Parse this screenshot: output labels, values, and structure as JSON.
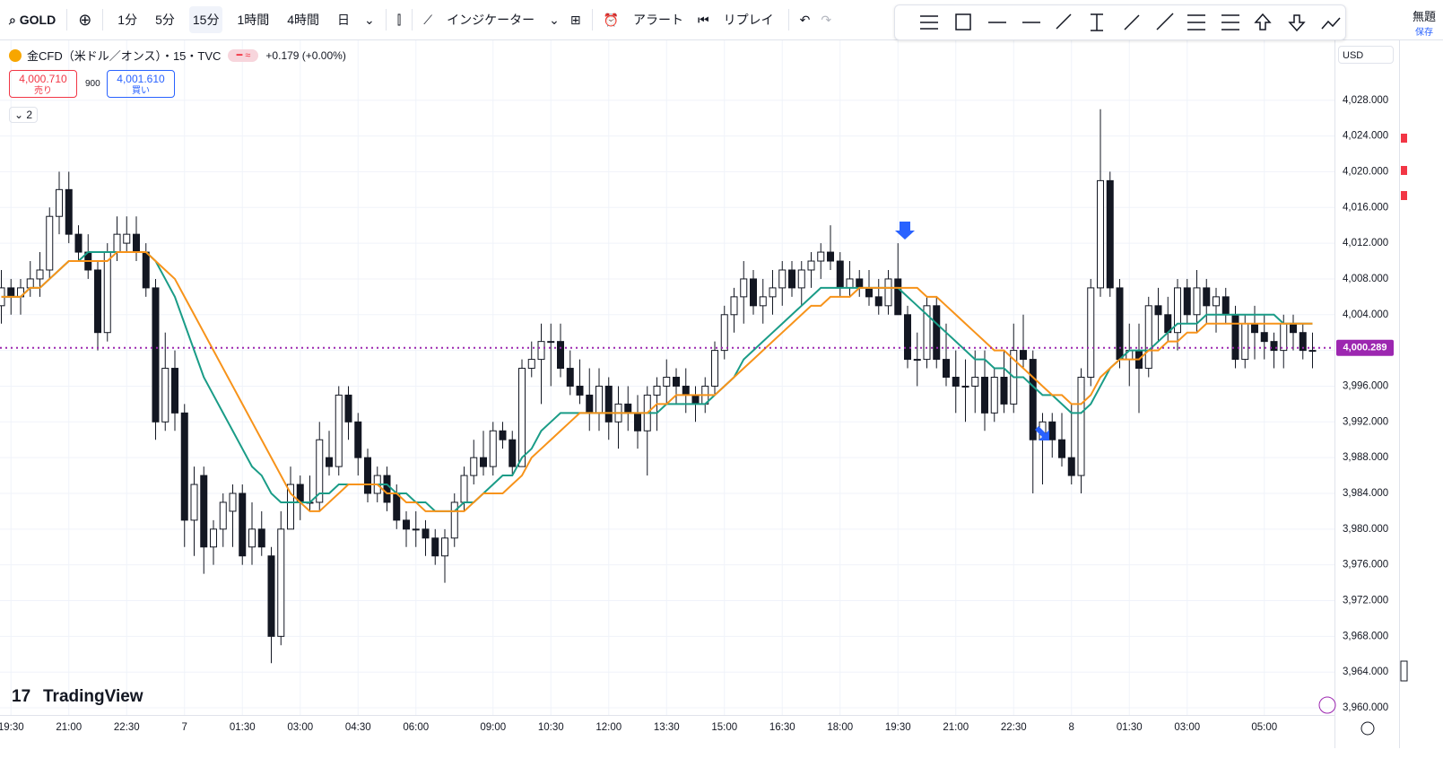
{
  "ui": {
    "symbol": "GOLD",
    "intervals": [
      "1分",
      "5分",
      "15分",
      "1時間",
      "4時間",
      "日"
    ],
    "indicators_button": "インジケーター",
    "alert_button": "アラート",
    "replay_button": "リプレイ",
    "layout_name": "無題",
    "save_label": "保存",
    "instrument": "金CFD（米ドル／オンス）・15・TVC",
    "change": "+0.179 (+0.00%)",
    "sell_price": "4,000.710",
    "sell_label": "売り",
    "spread": "900",
    "buy_price": "4,001.610",
    "buy_label": "買い",
    "indicator_count": "2",
    "currency": "USD",
    "brand": "TradingView"
  },
  "chart_data": {
    "type": "candlestick",
    "categories": [
      null,
      "19:30",
      null,
      null,
      null,
      null,
      null,
      "21:00",
      null,
      null,
      null,
      null,
      null,
      "22:30",
      null,
      null,
      null,
      null,
      null,
      "7",
      null,
      null,
      null,
      null,
      null,
      "01:30",
      null,
      null,
      null,
      null,
      null,
      "03:00",
      null,
      null,
      null,
      null,
      null,
      "04:30",
      null,
      null,
      null,
      null,
      null,
      "06:00",
      null,
      null,
      null,
      null,
      null,
      null,
      null,
      "09:00",
      null,
      null,
      null,
      null,
      null,
      "10:30",
      null,
      null,
      null,
      null,
      null,
      "12:00",
      null,
      null,
      null,
      null,
      null,
      "13:30",
      null,
      null,
      null,
      null,
      null,
      "15:00",
      null,
      null,
      null,
      null,
      null,
      "16:30",
      null,
      null,
      null,
      null,
      null,
      "18:00",
      null,
      null,
      null,
      null,
      null,
      "19:30",
      null,
      null,
      null,
      null,
      null,
      "21:00",
      null,
      null,
      null,
      null,
      null,
      "22:30",
      null,
      null,
      null,
      null,
      null,
      "8",
      null,
      null,
      null,
      null,
      null,
      "01:30",
      null,
      null,
      null,
      null,
      null,
      "03:00",
      null,
      null,
      null,
      null,
      null,
      null,
      null,
      "05:00",
      null,
      null,
      null,
      null,
      null
    ],
    "ohlc": [
      [
        4005,
        4009,
        4003,
        4007
      ],
      [
        4007,
        4008,
        4004,
        4006
      ],
      [
        4006,
        4008,
        4004,
        4007
      ],
      [
        4007,
        4010,
        4006,
        4008
      ],
      [
        4008,
        4011,
        4006,
        4009
      ],
      [
        4009,
        4016,
        4008,
        4015
      ],
      [
        4015,
        4020,
        4013,
        4018
      ],
      [
        4018,
        4020,
        4012,
        4013
      ],
      [
        4013,
        4014,
        4010,
        4011
      ],
      [
        4011,
        4013,
        4008,
        4009
      ],
      [
        4009,
        4010,
        4000,
        4002
      ],
      [
        4002,
        4012,
        4001,
        4011
      ],
      [
        4011,
        4015,
        4010,
        4013
      ],
      [
        4012,
        4015,
        4011,
        4013
      ],
      [
        4013,
        4015,
        4010,
        4011
      ],
      [
        4011,
        4012,
        4006,
        4007
      ],
      [
        4007,
        4008,
        3990,
        3992
      ],
      [
        3992,
        4002,
        3991,
        3998
      ],
      [
        3998,
        4000,
        3991,
        3993
      ],
      [
        3993,
        3994,
        3978,
        3981
      ],
      [
        3981,
        3987,
        3977,
        3985
      ],
      [
        3986,
        3987,
        3975,
        3978
      ],
      [
        3978,
        3981,
        3976,
        3980
      ],
      [
        3980,
        3984,
        3978,
        3983
      ],
      [
        3982,
        3985,
        3978,
        3984
      ],
      [
        3984,
        3985,
        3976,
        3977
      ],
      [
        3978,
        3983,
        3976,
        3980
      ],
      [
        3980,
        3982,
        3977,
        3978
      ],
      [
        3977,
        3978,
        3965,
        3968
      ],
      [
        3968,
        3982,
        3967,
        3980
      ],
      [
        3980,
        3987,
        3980,
        3985
      ],
      [
        3985,
        3986,
        3981,
        3983
      ],
      [
        3983,
        3986,
        3982,
        3983
      ],
      [
        3983,
        3992,
        3982,
        3990
      ],
      [
        3988,
        3991,
        3986,
        3987
      ],
      [
        3987,
        3996,
        3986,
        3995
      ],
      [
        3995,
        3996,
        3990,
        3992
      ],
      [
        3992,
        3993,
        3986,
        3988
      ],
      [
        3988,
        3989,
        3983,
        3984
      ],
      [
        3984,
        3987,
        3983,
        3986
      ],
      [
        3986,
        3987,
        3982,
        3983
      ],
      [
        3984,
        3985,
        3980,
        3981
      ],
      [
        3981,
        3982,
        3978,
        3980
      ],
      [
        3980,
        3982,
        3978,
        3980
      ],
      [
        3980,
        3981,
        3977,
        3979
      ],
      [
        3979,
        3980,
        3976,
        3977
      ],
      [
        3977,
        3980,
        3974,
        3979
      ],
      [
        3979,
        3984,
        3978,
        3983
      ],
      [
        3983,
        3987,
        3982,
        3986
      ],
      [
        3986,
        3990,
        3985,
        3988
      ],
      [
        3988,
        3991,
        3986,
        3987
      ],
      [
        3987,
        3992,
        3986,
        3991
      ],
      [
        3991,
        3992,
        3989,
        3990
      ],
      [
        3990,
        3991,
        3986,
        3987
      ],
      [
        3987,
        3999,
        3987,
        3998
      ],
      [
        3998,
        4001,
        3997,
        3999
      ],
      [
        3999,
        4003,
        3994,
        4001
      ],
      [
        4001,
        4003,
        3996,
        4001
      ],
      [
        4001,
        4003,
        3997,
        3998
      ],
      [
        3998,
        4000,
        3995,
        3996
      ],
      [
        3996,
        3999,
        3994,
        3995
      ],
      [
        3995,
        3998,
        3991,
        3993
      ],
      [
        3993,
        3998,
        3991,
        3996
      ],
      [
        3996,
        3997,
        3990,
        3992
      ],
      [
        3992,
        3996,
        3989,
        3994
      ],
      [
        3994,
        3996,
        3991,
        3993
      ],
      [
        3993,
        3995,
        3989,
        3991
      ],
      [
        3991,
        3996,
        3986,
        3995
      ],
      [
        3995,
        3997,
        3991,
        3996
      ],
      [
        3996,
        3999,
        3994,
        3997
      ],
      [
        3997,
        3998,
        3994,
        3996
      ],
      [
        3996,
        3998,
        3993,
        3995
      ],
      [
        3995,
        3996,
        3992,
        3994
      ],
      [
        3994,
        3997,
        3993,
        3996
      ],
      [
        3996,
        4001,
        3995,
        4000
      ],
      [
        4000,
        4005,
        3999,
        4004
      ],
      [
        4004,
        4007,
        4002,
        4006
      ],
      [
        4006,
        4010,
        4003,
        4008
      ],
      [
        4008,
        4009,
        4004,
        4005
      ],
      [
        4005,
        4008,
        4003,
        4006
      ],
      [
        4006,
        4009,
        4004,
        4007
      ],
      [
        4007,
        4010,
        4005,
        4009
      ],
      [
        4009,
        4010,
        4006,
        4007
      ],
      [
        4007,
        4010,
        4005,
        4009
      ],
      [
        4009,
        4011,
        4007,
        4010
      ],
      [
        4010,
        4012,
        4008,
        4011
      ],
      [
        4011,
        4014,
        4009,
        4010
      ],
      [
        4010,
        4011,
        4006,
        4007
      ],
      [
        4007,
        4010,
        4006,
        4008
      ],
      [
        4008,
        4009,
        4006,
        4007
      ],
      [
        4007,
        4009,
        4005,
        4006
      ],
      [
        4006,
        4008,
        4004,
        4005
      ],
      [
        4005,
        4009,
        4004,
        4008
      ],
      [
        4008,
        4012,
        4004,
        4004
      ],
      [
        4004,
        4005,
        3998,
        3999
      ],
      [
        3999,
        4002,
        3996,
        3999
      ],
      [
        3999,
        4006,
        3998,
        4005
      ],
      [
        4005,
        4006,
        3998,
        3999
      ],
      [
        3999,
        4003,
        3996,
        3997
      ],
      [
        3997,
        4000,
        3993,
        3996
      ],
      [
        3996,
        3999,
        3992,
        3996
      ],
      [
        3996,
        4000,
        3993,
        3997
      ],
      [
        3997,
        4000,
        3991,
        3993
      ],
      [
        3993,
        3998,
        3992,
        3997
      ],
      [
        3997,
        4000,
        3993,
        3994
      ],
      [
        3994,
        4003,
        3993,
        4000
      ],
      [
        4000,
        4004,
        3998,
        3999
      ],
      [
        3999,
        4000,
        3984,
        3990
      ],
      [
        3990,
        3993,
        3985,
        3992
      ],
      [
        3992,
        3993,
        3988,
        3990
      ],
      [
        3990,
        3993,
        3987,
        3988
      ],
      [
        3988,
        3994,
        3985,
        3986
      ],
      [
        3986,
        3998,
        3984,
        3997
      ],
      [
        3997,
        4008,
        3996,
        4007
      ],
      [
        4007,
        4027,
        4006,
        4019
      ],
      [
        4019,
        4020,
        4006,
        4007
      ],
      [
        4007,
        4008,
        3998,
        3999
      ],
      [
        3999,
        4003,
        3996,
        4000
      ],
      [
        4000,
        4003,
        3993,
        3998
      ],
      [
        3998,
        4006,
        3997,
        4005
      ],
      [
        4005,
        4007,
        4001,
        4004
      ],
      [
        4004,
        4006,
        4001,
        4002
      ],
      [
        4002,
        4008,
        4000,
        4007
      ],
      [
        4007,
        4008,
        4003,
        4004
      ],
      [
        4004,
        4009,
        4002,
        4007
      ],
      [
        4007,
        4008,
        4003,
        4005
      ],
      [
        4005,
        4007,
        4002,
        4006
      ],
      [
        4006,
        4007,
        4003,
        4004
      ],
      [
        4004,
        4005,
        3998,
        3999
      ],
      [
        3999,
        4004,
        3998,
        4003
      ],
      [
        4003,
        4005,
        3999,
        4002
      ],
      [
        4002,
        4004,
        3999,
        4001
      ],
      [
        4001,
        4002,
        3998,
        4000
      ],
      [
        4000,
        4004,
        3998,
        4003
      ],
      [
        4003,
        4004,
        4000,
        4002
      ],
      [
        4002,
        4003,
        3999,
        4000
      ],
      [
        4000,
        4002,
        3998,
        4000
      ]
    ],
    "lines": [
      {
        "color": "#1a9c87",
        "values": [
          4006,
          4006,
          4006,
          4007,
          4007,
          4008,
          4009,
          4010,
          4010,
          4011,
          4011,
          4011,
          4011,
          4011,
          4011,
          4011,
          4010,
          4008,
          4006,
          4003,
          4000,
          3997,
          3995,
          3993,
          3991,
          3989,
          3987,
          3986,
          3984,
          3983,
          3983,
          3983,
          3983,
          3984,
          3984,
          3985,
          3985,
          3985,
          3985,
          3985,
          3985,
          3984,
          3984,
          3983,
          3983,
          3982,
          3982,
          3982,
          3983,
          3983,
          3984,
          3985,
          3986,
          3986,
          3988,
          3989,
          3991,
          3992,
          3993,
          3993,
          3993,
          3993,
          3993,
          3993,
          3993,
          3993,
          3993,
          3993,
          3993,
          3994,
          3994,
          3994,
          3994,
          3994,
          3995,
          3996,
          3997,
          3999,
          4000,
          4001,
          4002,
          4003,
          4004,
          4005,
          4006,
          4007,
          4007,
          4007,
          4007,
          4007,
          4007,
          4007,
          4007,
          4007,
          4006,
          4005,
          4004,
          4003,
          4002,
          4001,
          4000,
          3999,
          3999,
          3998,
          3998,
          3997,
          3997,
          3996,
          3995,
          3995,
          3994,
          3993,
          3993,
          3994,
          3996,
          3998,
          3999,
          4000,
          4000,
          4000,
          4001,
          4002,
          4003,
          4003,
          4003,
          4004,
          4004,
          4004,
          4004,
          4004,
          4004,
          4004,
          4004,
          4003,
          4003,
          4003,
          4003
        ]
      },
      {
        "color": "#f7931a",
        "values": [
          4006,
          4006,
          4006,
          4007,
          4007,
          4008,
          4009,
          4010,
          4010,
          4010,
          4010,
          4010,
          4011,
          4011,
          4011,
          4011,
          4010,
          4009,
          4008,
          4006,
          4004,
          4002,
          4000,
          3998,
          3996,
          3994,
          3992,
          3990,
          3988,
          3986,
          3984,
          3983,
          3982,
          3982,
          3983,
          3984,
          3985,
          3985,
          3985,
          3985,
          3984,
          3984,
          3983,
          3983,
          3982,
          3982,
          3982,
          3982,
          3982,
          3983,
          3984,
          3984,
          3984,
          3985,
          3986,
          3988,
          3989,
          3990,
          3991,
          3992,
          3993,
          3993,
          3993,
          3993,
          3993,
          3993,
          3993,
          3993,
          3994,
          3994,
          3995,
          3995,
          3995,
          3995,
          3995,
          3996,
          3997,
          3998,
          3999,
          4000,
          4001,
          4002,
          4003,
          4004,
          4005,
          4005,
          4006,
          4006,
          4006,
          4007,
          4007,
          4007,
          4007,
          4007,
          4007,
          4007,
          4006,
          4006,
          4005,
          4004,
          4003,
          4002,
          4001,
          4000,
          4000,
          3999,
          3998,
          3997,
          3996,
          3995,
          3995,
          3994,
          3994,
          3995,
          3997,
          3998,
          3999,
          3999,
          3999,
          4000,
          4000,
          4001,
          4001,
          4002,
          4002,
          4003,
          4003,
          4003,
          4003,
          4003,
          4003,
          4003,
          4003,
          4003,
          4003,
          4003,
          4003
        ]
      }
    ],
    "price_line": {
      "value": 4000.289,
      "label": "4,000.289",
      "color": "#9c27b0"
    },
    "ylim": [
      3959.2,
      4034.7
    ],
    "yticks": [
      {
        "value": 3960,
        "label": "3,960.000"
      },
      {
        "value": 3964,
        "label": "3,964.000"
      },
      {
        "value": 3968,
        "label": "3,968.000"
      },
      {
        "value": 3972,
        "label": "3,972.000"
      },
      {
        "value": 3976,
        "label": "3,976.000"
      },
      {
        "value": 3980,
        "label": "3,980.000"
      },
      {
        "value": 3984,
        "label": "3,984.000"
      },
      {
        "value": 3988,
        "label": "3,988.000"
      },
      {
        "value": 3992,
        "label": "3,992.000"
      },
      {
        "value": 3996,
        "label": "3,996.000"
      },
      {
        "value": 4000,
        "label": "4,000.000"
      },
      {
        "value": 4004,
        "label": "4,004.000"
      },
      {
        "value": 4008,
        "label": "4,008.000"
      },
      {
        "value": 4012,
        "label": "4,012.000"
      },
      {
        "value": 4016,
        "label": "4,016.000"
      },
      {
        "value": 4020,
        "label": "4,020.000"
      },
      {
        "value": 4024,
        "label": "4,024.000"
      },
      {
        "value": 4028,
        "label": "4,028.000"
      }
    ],
    "grid": true
  }
}
